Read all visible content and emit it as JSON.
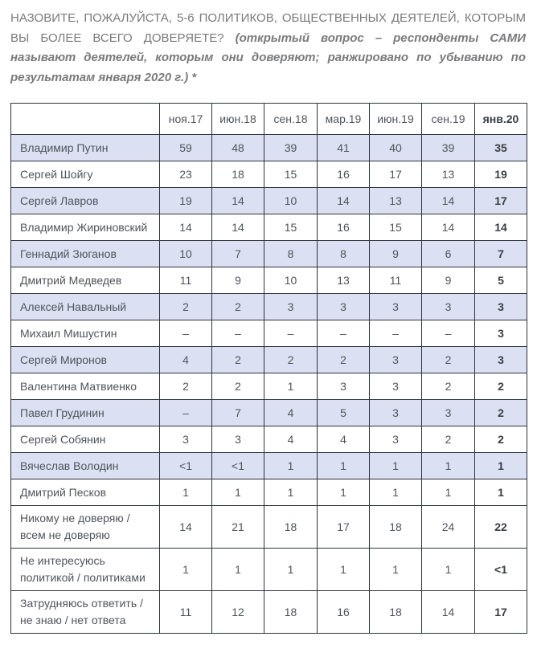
{
  "question": {
    "main": "НАЗОВИТЕ, ПОЖАЛУЙСТА, 5-6 ПОЛИТИКОВ, ОБЩЕСТВЕННЫХ ДЕЯТЕЛЕЙ, КОТОРЫМ ВЫ БОЛЕЕ ВСЕГО ДОВЕРЯЕТЕ? ",
    "note": "(открытый вопрос – респонденты САМИ называют деятелей, которым они доверяют; ранжировано по убыванию по результатам января 2020 г.) *"
  },
  "colors": {
    "highlight_row": "#dbe0f3",
    "table_border": "#2e333d",
    "cell_text": "#50545a",
    "bold_text": "#3a3d43",
    "title_text": "#797a7c",
    "page_bg": "#ffffff"
  },
  "chart_data": {
    "type": "table",
    "title": "НАЗОВИТЕ, ПОЖАЛУЙСТА, 5-6 ПОЛИТИКОВ, ОБЩЕСТВЕННЫХ ДЕЯТЕЛЕЙ, КОТОРЫМ ВЫ БОЛЕЕ ВСЕГО ДОВЕРЯЕТЕ?",
    "subtitle": "(открытый вопрос – респонденты САМИ называют деятелей, которым они доверяют; ранжировано по убыванию по результатам января 2020 г.) *",
    "corner_label": "",
    "columns": [
      "ноя.17",
      "июн.18",
      "сен.18",
      "мар.19",
      "июн.19",
      "сен.19",
      "янв.20"
    ],
    "last_column_bold": true,
    "rows": [
      {
        "label": "Владимир Путин",
        "values": [
          "59",
          "48",
          "39",
          "41",
          "40",
          "39",
          "35"
        ],
        "highlighted": true
      },
      {
        "label": "Сергей Шойгу",
        "values": [
          "23",
          "18",
          "15",
          "16",
          "17",
          "13",
          "19"
        ],
        "highlighted": false
      },
      {
        "label": "Сергей Лавров",
        "values": [
          "19",
          "14",
          "10",
          "14",
          "13",
          "14",
          "17"
        ],
        "highlighted": true
      },
      {
        "label": "Владимир Жириновский",
        "values": [
          "14",
          "14",
          "15",
          "16",
          "15",
          "14",
          "14"
        ],
        "highlighted": false
      },
      {
        "label": "Геннадий Зюганов",
        "values": [
          "10",
          "7",
          "8",
          "8",
          "9",
          "6",
          "7"
        ],
        "highlighted": true
      },
      {
        "label": "Дмитрий Медведев",
        "values": [
          "11",
          "9",
          "10",
          "13",
          "11",
          "9",
          "5"
        ],
        "highlighted": false
      },
      {
        "label": "Алексей Навальный",
        "values": [
          "2",
          "2",
          "3",
          "3",
          "3",
          "3",
          "3"
        ],
        "highlighted": true
      },
      {
        "label": "Михаил Мишустин",
        "values": [
          "–",
          "–",
          "–",
          "–",
          "–",
          "–",
          "3"
        ],
        "highlighted": false
      },
      {
        "label": "Сергей Миронов",
        "values": [
          "4",
          "2",
          "2",
          "2",
          "3",
          "2",
          "3"
        ],
        "highlighted": true
      },
      {
        "label": "Валентина Матвиенко",
        "values": [
          "2",
          "2",
          "1",
          "3",
          "3",
          "2",
          "2"
        ],
        "highlighted": false
      },
      {
        "label": "Павел Грудинин",
        "values": [
          "–",
          "7",
          "4",
          "5",
          "3",
          "3",
          "2"
        ],
        "highlighted": true
      },
      {
        "label": "Сергей Собянин",
        "values": [
          "3",
          "3",
          "4",
          "4",
          "3",
          "2",
          "2"
        ],
        "highlighted": false
      },
      {
        "label": "Вячеслав Володин",
        "values": [
          "<1",
          "<1",
          "1",
          "1",
          "1",
          "1",
          "1"
        ],
        "highlighted": true
      },
      {
        "label": "Дмитрий Песков",
        "values": [
          "1",
          "1",
          "1",
          "1",
          "1",
          "1",
          "1"
        ],
        "highlighted": false
      },
      {
        "label": "Никому не доверяю / всем не доверяю",
        "values": [
          "14",
          "21",
          "18",
          "17",
          "18",
          "24",
          "22"
        ],
        "highlighted": false
      },
      {
        "label": "Не интересуюсь политикой / политиками",
        "values": [
          "1",
          "1",
          "1",
          "1",
          "1",
          "1",
          "<1"
        ],
        "highlighted": false
      },
      {
        "label": "Затрудняюсь ответить / не знаю / нет ответа",
        "values": [
          "11",
          "12",
          "18",
          "16",
          "18",
          "14",
          "17"
        ],
        "highlighted": false
      }
    ]
  }
}
